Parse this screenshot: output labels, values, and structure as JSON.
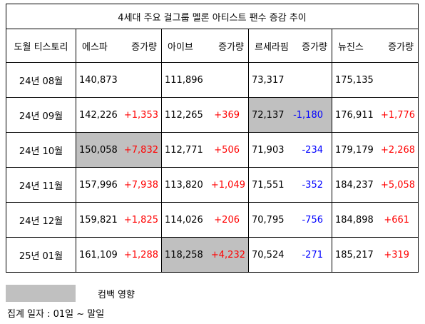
{
  "title": "4세대 주요 걸그룹 멜론 아티스트 팬수 증감 추이",
  "header": {
    "period": "도월 티스토리",
    "groups": [
      {
        "name": "에스파",
        "change": "증가량"
      },
      {
        "name": "아이브",
        "change": "증가량"
      },
      {
        "name": "르세라핌",
        "change": "증가량"
      },
      {
        "name": "뉴진스",
        "change": "증가량"
      }
    ]
  },
  "rows": [
    {
      "period": "24년 08월",
      "cells": [
        {
          "value": "140,873",
          "change": "",
          "dir": "",
          "hl": false
        },
        {
          "value": "111,896",
          "change": "",
          "dir": "",
          "hl": false
        },
        {
          "value": "73,317",
          "change": "",
          "dir": "",
          "hl": false
        },
        {
          "value": "175,135",
          "change": "",
          "dir": "",
          "hl": false
        }
      ]
    },
    {
      "period": "24년 09월",
      "cells": [
        {
          "value": "142,226",
          "change": "+1,353",
          "dir": "pos",
          "hl": false
        },
        {
          "value": "112,265",
          "change": "+369",
          "dir": "pos",
          "hl": false
        },
        {
          "value": "72,137",
          "change": "-1,180",
          "dir": "neg",
          "hl": true
        },
        {
          "value": "176,911",
          "change": "+1,776",
          "dir": "pos",
          "hl": false
        }
      ]
    },
    {
      "period": "24년 10월",
      "cells": [
        {
          "value": "150,058",
          "change": "+7,832",
          "dir": "pos",
          "hl": true
        },
        {
          "value": "112,771",
          "change": "+506",
          "dir": "pos",
          "hl": false
        },
        {
          "value": "71,903",
          "change": "-234",
          "dir": "neg",
          "hl": false
        },
        {
          "value": "179,179",
          "change": "+2,268",
          "dir": "pos",
          "hl": false
        }
      ]
    },
    {
      "period": "24년 11월",
      "cells": [
        {
          "value": "157,996",
          "change": "+7,938",
          "dir": "pos",
          "hl": false
        },
        {
          "value": "113,820",
          "change": "+1,049",
          "dir": "pos",
          "hl": false
        },
        {
          "value": "71,551",
          "change": "-352",
          "dir": "neg",
          "hl": false
        },
        {
          "value": "184,237",
          "change": "+5,058",
          "dir": "pos",
          "hl": false
        }
      ]
    },
    {
      "period": "24년 12월",
      "cells": [
        {
          "value": "159,821",
          "change": "+1,825",
          "dir": "pos",
          "hl": false
        },
        {
          "value": "114,026",
          "change": "+206",
          "dir": "pos",
          "hl": false
        },
        {
          "value": "70,795",
          "change": "-756",
          "dir": "neg",
          "hl": false
        },
        {
          "value": "184,898",
          "change": "+661",
          "dir": "pos",
          "hl": false
        }
      ]
    },
    {
      "period": "25년 01월",
      "cells": [
        {
          "value": "161,109",
          "change": "+1,288",
          "dir": "pos",
          "hl": false
        },
        {
          "value": "118,258",
          "change": "+4,232",
          "dir": "pos",
          "hl": true
        },
        {
          "value": "70,524",
          "change": "-271",
          "dir": "neg",
          "hl": false
        },
        {
          "value": "185,217",
          "change": "+319",
          "dir": "pos",
          "hl": false
        }
      ]
    }
  ],
  "legend": {
    "label": "컴백 영향",
    "color": "#c0c0c0"
  },
  "footnote": "집계 일자 : 01일 ~ 말일",
  "colors": {
    "increase": "#ff0000",
    "decrease": "#0000ff",
    "highlight": "#c0c0c0"
  }
}
